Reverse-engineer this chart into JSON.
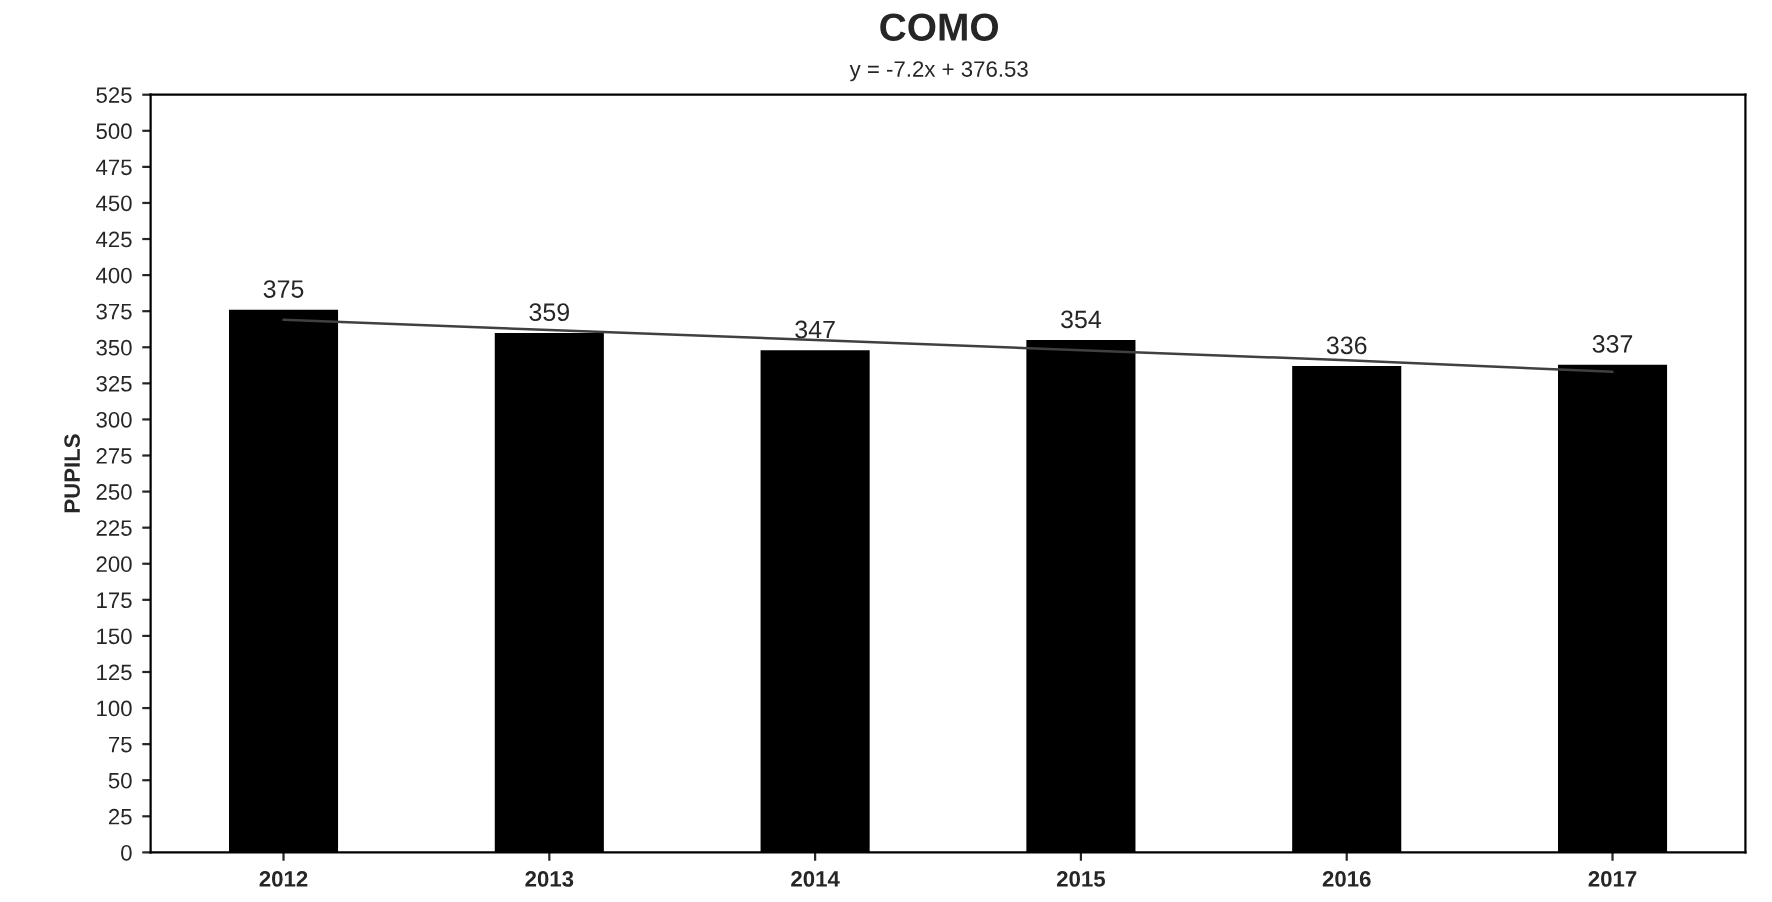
{
  "chart_data": {
    "type": "bar",
    "title": "COMO",
    "subtitle": "y = -7.2x + 376.53",
    "ylabel": "PUPILS",
    "categories": [
      "2012",
      "2013",
      "2014",
      "2015",
      "2016",
      "2017"
    ],
    "series": [
      {
        "color": "#000000",
        "values": [
          375,
          359,
          347,
          354,
          336,
          337
        ],
        "value_labels": [
          "375",
          "359",
          "347",
          "354",
          "336",
          "337"
        ]
      },
      {
        "type": "line",
        "color": "#404040",
        "values": [
          369,
          362,
          355,
          348,
          341,
          333
        ]
      }
    ],
    "ylim": [
      0,
      525
    ],
    "yticks": [
      0,
      25,
      50,
      75,
      100,
      125,
      150,
      175,
      200,
      225,
      250,
      275,
      300,
      325,
      350,
      375,
      400,
      425,
      450,
      475,
      500,
      525
    ],
    "grid": false
  }
}
